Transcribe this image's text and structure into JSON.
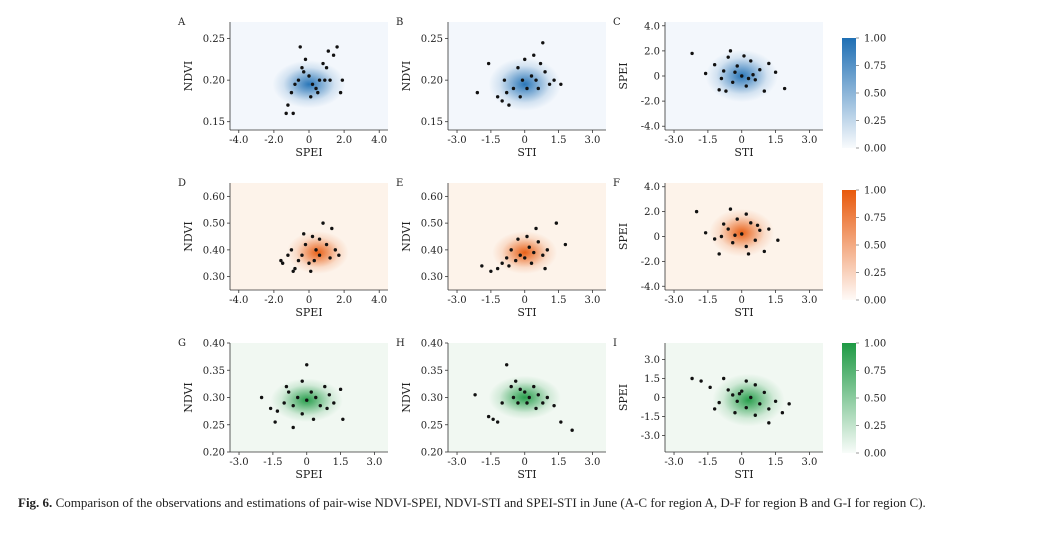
{
  "caption": {
    "label": "Fig. 6.",
    "text": "Comparison of the observations and estimations of pair-wise NDVI-SPEI, NDVI-STI and SPEI-STI in June (A-C for region A, D-F for region B and G-I for region C)."
  },
  "colors": {
    "blue": "#1f6fb4",
    "orange": "#e8590c",
    "green": "#1e9a44",
    "point": "#111111"
  },
  "chart_data": [
    {
      "type": "scatter",
      "panel": "A",
      "region": "A",
      "xlabel": "SPEI",
      "ylabel": "NDVI",
      "xlim": [
        -4.5,
        4.5
      ],
      "ylim": [
        0.14,
        0.27
      ],
      "xticks": [
        -4,
        -2,
        0,
        2,
        4
      ],
      "xtick_labels": [
        "-4.0",
        "-2.0",
        "0",
        "2.0",
        "4.0"
      ],
      "yticks": [
        0.15,
        0.2,
        0.25
      ],
      "ytick_labels": [
        "0.15",
        "0.20",
        "0.25"
      ],
      "density_center": [
        0.0,
        0.195
      ],
      "density_spread": [
        1.3,
        0.018
      ],
      "color": "blue",
      "points": [
        [
          -1.2,
          0.17
        ],
        [
          -1.0,
          0.185
        ],
        [
          -0.8,
          0.195
        ],
        [
          -0.6,
          0.2
        ],
        [
          -0.3,
          0.21
        ],
        [
          0.0,
          0.205
        ],
        [
          0.2,
          0.195
        ],
        [
          0.4,
          0.19
        ],
        [
          0.6,
          0.2
        ],
        [
          0.8,
          0.22
        ],
        [
          1.0,
          0.215
        ],
        [
          1.2,
          0.2
        ],
        [
          1.4,
          0.23
        ],
        [
          1.6,
          0.24
        ],
        [
          1.8,
          0.185
        ],
        [
          1.9,
          0.2
        ],
        [
          -0.5,
          0.24
        ],
        [
          -0.2,
          0.225
        ],
        [
          0.1,
          0.18
        ],
        [
          -1.3,
          0.16
        ],
        [
          -0.9,
          0.16
        ],
        [
          0.5,
          0.185
        ],
        [
          0.9,
          0.2
        ],
        [
          1.1,
          0.235
        ],
        [
          -0.4,
          0.215
        ]
      ]
    },
    {
      "type": "scatter",
      "panel": "B",
      "region": "A",
      "xlabel": "STI",
      "ylabel": "NDVI",
      "xlim": [
        -3.4,
        3.6
      ],
      "ylim": [
        0.14,
        0.27
      ],
      "xticks": [
        -3,
        -1.5,
        0,
        1.5,
        3
      ],
      "xtick_labels": [
        "-3.0",
        "-1.5",
        "0",
        "1.5",
        "3.0"
      ],
      "yticks": [
        0.15,
        0.2,
        0.25
      ],
      "ytick_labels": [
        "0.15",
        "0.20",
        "0.25"
      ],
      "density_center": [
        0.0,
        0.195
      ],
      "density_spread": [
        1.0,
        0.02
      ],
      "color": "blue",
      "points": [
        [
          -2.1,
          0.185
        ],
        [
          -1.6,
          0.22
        ],
        [
          -1.2,
          0.18
        ],
        [
          -0.9,
          0.2
        ],
        [
          -0.7,
          0.17
        ],
        [
          -0.5,
          0.19
        ],
        [
          -0.3,
          0.215
        ],
        [
          -0.1,
          0.2
        ],
        [
          0.1,
          0.19
        ],
        [
          0.3,
          0.205
        ],
        [
          0.5,
          0.2
        ],
        [
          0.7,
          0.22
        ],
        [
          0.9,
          0.21
        ],
        [
          1.1,
          0.195
        ],
        [
          1.3,
          0.2
        ],
        [
          -0.8,
          0.185
        ],
        [
          0.0,
          0.225
        ],
        [
          0.4,
          0.23
        ],
        [
          0.8,
          0.245
        ],
        [
          -1.0,
          0.175
        ],
        [
          1.6,
          0.195
        ],
        [
          -0.2,
          0.18
        ],
        [
          0.6,
          0.19
        ]
      ]
    },
    {
      "type": "scatter",
      "panel": "C",
      "region": "A",
      "xlabel": "STI",
      "ylabel": "SPEI",
      "xlim": [
        -3.4,
        3.6
      ],
      "ylim": [
        -4.3,
        4.3
      ],
      "xticks": [
        -3,
        -1.5,
        0,
        1.5,
        3
      ],
      "xtick_labels": [
        "-3.0",
        "-1.5",
        "0",
        "1.5",
        "3.0"
      ],
      "yticks": [
        -4,
        -2,
        0,
        2,
        4
      ],
      "ytick_labels": [
        "-4.0",
        "-2.0",
        "0",
        "2.0",
        "4.0"
      ],
      "density_center": [
        0.0,
        0.0
      ],
      "density_spread": [
        1.0,
        1.3
      ],
      "color": "blue",
      "points": [
        [
          -2.2,
          1.8
        ],
        [
          -1.6,
          0.2
        ],
        [
          -1.2,
          0.9
        ],
        [
          -1.0,
          -1.1
        ],
        [
          -0.8,
          0.4
        ],
        [
          -0.6,
          1.5
        ],
        [
          -0.4,
          -0.5
        ],
        [
          -0.2,
          0.8
        ],
        [
          0.0,
          0.0
        ],
        [
          0.2,
          -0.8
        ],
        [
          0.4,
          1.2
        ],
        [
          0.6,
          -0.3
        ],
        [
          0.8,
          0.5
        ],
        [
          1.0,
          -1.2
        ],
        [
          1.2,
          1.0
        ],
        [
          -0.5,
          2.0
        ],
        [
          0.1,
          1.6
        ],
        [
          -0.9,
          -0.2
        ],
        [
          1.5,
          0.3
        ],
        [
          1.9,
          -1.0
        ],
        [
          0.3,
          -0.2
        ],
        [
          -0.3,
          0.3
        ],
        [
          0.5,
          0.1
        ],
        [
          -0.7,
          -1.2
        ]
      ]
    },
    {
      "type": "scatter",
      "panel": "D",
      "region": "B",
      "xlabel": "SPEI",
      "ylabel": "NDVI",
      "xlim": [
        -4.5,
        4.5
      ],
      "ylim": [
        0.25,
        0.65
      ],
      "xticks": [
        -4,
        -2,
        0,
        2,
        4
      ],
      "xtick_labels": [
        "-4.0",
        "-2.0",
        "0",
        "2.0",
        "4.0"
      ],
      "yticks": [
        0.3,
        0.4,
        0.5,
        0.6
      ],
      "ytick_labels": [
        "0.30",
        "0.40",
        "0.50",
        "0.60"
      ],
      "density_center": [
        0.5,
        0.39
      ],
      "density_spread": [
        1.1,
        0.05
      ],
      "color": "orange",
      "points": [
        [
          -1.6,
          0.36
        ],
        [
          -1.5,
          0.35
        ],
        [
          -1.2,
          0.38
        ],
        [
          -1.0,
          0.4
        ],
        [
          -0.8,
          0.33
        ],
        [
          -0.6,
          0.36
        ],
        [
          -0.4,
          0.38
        ],
        [
          -0.2,
          0.42
        ],
        [
          0.0,
          0.35
        ],
        [
          0.2,
          0.45
        ],
        [
          0.4,
          0.4
        ],
        [
          0.6,
          0.38
        ],
        [
          0.8,
          0.5
        ],
        [
          1.0,
          0.42
        ],
        [
          1.2,
          0.37
        ],
        [
          1.5,
          0.4
        ],
        [
          -0.3,
          0.46
        ],
        [
          0.1,
          0.32
        ],
        [
          0.6,
          0.44
        ],
        [
          1.3,
          0.48
        ],
        [
          -0.9,
          0.32
        ],
        [
          0.3,
          0.36
        ],
        [
          1.7,
          0.38
        ]
      ]
    },
    {
      "type": "scatter",
      "panel": "E",
      "region": "B",
      "xlabel": "STI",
      "ylabel": "NDVI",
      "xlim": [
        -3.4,
        3.6
      ],
      "ylim": [
        0.25,
        0.65
      ],
      "xticks": [
        -3,
        -1.5,
        0,
        1.5,
        3
      ],
      "xtick_labels": [
        "-3.0",
        "-1.5",
        "0",
        "1.5",
        "3.0"
      ],
      "yticks": [
        0.3,
        0.4,
        0.5,
        0.6
      ],
      "ytick_labels": [
        "0.30",
        "0.40",
        "0.50",
        "0.60"
      ],
      "density_center": [
        0.0,
        0.39
      ],
      "density_spread": [
        0.9,
        0.05
      ],
      "color": "orange",
      "points": [
        [
          -1.9,
          0.34
        ],
        [
          -1.5,
          0.32
        ],
        [
          -1.2,
          0.33
        ],
        [
          -1.0,
          0.35
        ],
        [
          -0.8,
          0.37
        ],
        [
          -0.6,
          0.4
        ],
        [
          -0.4,
          0.36
        ],
        [
          -0.2,
          0.38
        ],
        [
          0.0,
          0.37
        ],
        [
          0.2,
          0.41
        ],
        [
          0.4,
          0.39
        ],
        [
          0.6,
          0.43
        ],
        [
          0.8,
          0.38
        ],
        [
          1.0,
          0.4
        ],
        [
          1.4,
          0.5
        ],
        [
          -0.3,
          0.44
        ],
        [
          0.5,
          0.48
        ],
        [
          1.8,
          0.42
        ],
        [
          -0.7,
          0.34
        ],
        [
          0.3,
          0.35
        ],
        [
          0.1,
          0.45
        ],
        [
          0.9,
          0.33
        ]
      ]
    },
    {
      "type": "scatter",
      "panel": "F",
      "region": "B",
      "xlabel": "STI",
      "ylabel": "SPEI",
      "xlim": [
        -3.4,
        3.6
      ],
      "ylim": [
        -4.3,
        4.3
      ],
      "xticks": [
        -3,
        -1.5,
        0,
        1.5,
        3
      ],
      "xtick_labels": [
        "-3.0",
        "-1.5",
        "0",
        "1.5",
        "3.0"
      ],
      "yticks": [
        -4,
        -2,
        0,
        2,
        4
      ],
      "ytick_labels": [
        "-4.0",
        "-2.0",
        "0",
        "2.0",
        "4.0"
      ],
      "density_center": [
        0.0,
        0.3
      ],
      "density_spread": [
        0.9,
        1.2
      ],
      "color": "orange",
      "points": [
        [
          -2.0,
          2.0
        ],
        [
          -1.6,
          0.3
        ],
        [
          -1.2,
          -0.2
        ],
        [
          -1.0,
          -1.4
        ],
        [
          -0.8,
          1.0
        ],
        [
          -0.6,
          0.6
        ],
        [
          -0.4,
          -0.5
        ],
        [
          -0.2,
          1.4
        ],
        [
          0.0,
          0.2
        ],
        [
          0.2,
          -0.8
        ],
        [
          0.4,
          1.1
        ],
        [
          0.6,
          -0.3
        ],
        [
          0.8,
          0.5
        ],
        [
          1.0,
          -1.2
        ],
        [
          1.2,
          0.6
        ],
        [
          -0.5,
          2.2
        ],
        [
          0.2,
          1.8
        ],
        [
          -0.9,
          0.0
        ],
        [
          1.6,
          -0.3
        ],
        [
          0.3,
          -1.4
        ],
        [
          -0.3,
          0.1
        ],
        [
          0.7,
          0.9
        ]
      ]
    },
    {
      "type": "scatter",
      "panel": "G",
      "region": "C",
      "xlabel": "SPEI",
      "ylabel": "NDVI",
      "xlim": [
        -3.4,
        3.6
      ],
      "ylim": [
        0.2,
        0.4
      ],
      "xticks": [
        -3,
        -1.5,
        0,
        1.5,
        3
      ],
      "xtick_labels": [
        "-3.0",
        "-1.5",
        "0",
        "1.5",
        "3.0"
      ],
      "yticks": [
        0.2,
        0.25,
        0.3,
        0.35,
        0.4
      ],
      "ytick_labels": [
        "0.20",
        "0.25",
        "0.30",
        "0.35",
        "0.40"
      ],
      "density_center": [
        0.0,
        0.295
      ],
      "density_spread": [
        1.0,
        0.025
      ],
      "color": "green",
      "points": [
        [
          -2.0,
          0.3
        ],
        [
          -1.6,
          0.28
        ],
        [
          -1.3,
          0.275
        ],
        [
          -1.0,
          0.29
        ],
        [
          -0.8,
          0.31
        ],
        [
          -0.6,
          0.285
        ],
        [
          -0.4,
          0.3
        ],
        [
          -0.2,
          0.27
        ],
        [
          0.0,
          0.295
        ],
        [
          0.2,
          0.31
        ],
        [
          0.4,
          0.3
        ],
        [
          0.6,
          0.285
        ],
        [
          0.8,
          0.32
        ],
        [
          1.0,
          0.305
        ],
        [
          1.2,
          0.29
        ],
        [
          1.5,
          0.315
        ],
        [
          -0.2,
          0.33
        ],
        [
          0.0,
          0.36
        ],
        [
          -1.4,
          0.255
        ],
        [
          -0.6,
          0.245
        ],
        [
          1.6,
          0.26
        ],
        [
          0.3,
          0.26
        ],
        [
          -0.9,
          0.32
        ],
        [
          0.9,
          0.28
        ]
      ]
    },
    {
      "type": "scatter",
      "panel": "H",
      "region": "C",
      "xlabel": "STI",
      "ylabel": "NDVI",
      "xlim": [
        -3.4,
        3.6
      ],
      "ylim": [
        0.2,
        0.4
      ],
      "xticks": [
        -3,
        -1.5,
        0,
        1.5,
        3
      ],
      "xtick_labels": [
        "-3.0",
        "-1.5",
        "0",
        "1.5",
        "3.0"
      ],
      "yticks": [
        0.2,
        0.25,
        0.3,
        0.35,
        0.4
      ],
      "ytick_labels": [
        "0.20",
        "0.25",
        "0.30",
        "0.35",
        "0.40"
      ],
      "density_center": [
        0.0,
        0.3
      ],
      "density_spread": [
        1.0,
        0.025
      ],
      "color": "green",
      "points": [
        [
          -2.2,
          0.305
        ],
        [
          -1.6,
          0.265
        ],
        [
          -1.4,
          0.26
        ],
        [
          -1.2,
          0.255
        ],
        [
          -1.0,
          0.29
        ],
        [
          -0.8,
          0.36
        ],
        [
          -0.6,
          0.32
        ],
        [
          -0.4,
          0.33
        ],
        [
          -0.2,
          0.315
        ],
        [
          0.0,
          0.31
        ],
        [
          0.2,
          0.3
        ],
        [
          0.4,
          0.32
        ],
        [
          0.6,
          0.305
        ],
        [
          0.8,
          0.29
        ],
        [
          1.0,
          0.3
        ],
        [
          1.3,
          0.285
        ],
        [
          -0.5,
          0.3
        ],
        [
          0.1,
          0.29
        ],
        [
          0.5,
          0.28
        ],
        [
          1.6,
          0.255
        ],
        [
          2.1,
          0.24
        ],
        [
          -0.3,
          0.29
        ]
      ]
    },
    {
      "type": "scatter",
      "panel": "I",
      "region": "C",
      "xlabel": "STI",
      "ylabel": "SPEI",
      "xlim": [
        -3.4,
        3.6
      ],
      "ylim": [
        -4.3,
        4.3
      ],
      "xticks": [
        -3,
        -1.5,
        0,
        1.5,
        3
      ],
      "xtick_labels": [
        "-3.0",
        "-1.5",
        "0",
        "1.5",
        "3.0"
      ],
      "yticks": [
        -3,
        -1.5,
        0,
        1.5,
        3
      ],
      "ytick_labels": [
        "-3.0",
        "-1.5",
        "0",
        "1.5",
        "3.0"
      ],
      "density_center": [
        0.3,
        -0.2
      ],
      "density_spread": [
        1.0,
        1.3
      ],
      "color": "green",
      "points": [
        [
          -2.2,
          1.5
        ],
        [
          -1.8,
          1.3
        ],
        [
          -1.4,
          0.8
        ],
        [
          -1.0,
          -0.4
        ],
        [
          -0.8,
          1.5
        ],
        [
          -0.6,
          0.6
        ],
        [
          -0.4,
          0.2
        ],
        [
          -0.2,
          -0.3
        ],
        [
          0.0,
          0.5
        ],
        [
          0.2,
          -0.8
        ],
        [
          0.4,
          0.0
        ],
        [
          0.6,
          1.0
        ],
        [
          0.8,
          -0.5
        ],
        [
          1.0,
          0.4
        ],
        [
          1.2,
          -0.9
        ],
        [
          1.5,
          -0.3
        ],
        [
          1.8,
          -1.2
        ],
        [
          2.1,
          -0.5
        ],
        [
          -1.2,
          -0.9
        ],
        [
          0.2,
          1.3
        ],
        [
          -0.3,
          -1.2
        ],
        [
          0.6,
          -1.4
        ],
        [
          1.2,
          -2.0
        ],
        [
          -0.1,
          0.3
        ]
      ]
    }
  ],
  "colorbars": [
    {
      "color": "blue",
      "ticks": [
        "1.00",
        "0.75",
        "0.50",
        "0.25",
        "0.00"
      ]
    },
    {
      "color": "orange",
      "ticks": [
        "1.00",
        "0.75",
        "0.50",
        "0.25",
        "0.00"
      ]
    },
    {
      "color": "green",
      "ticks": [
        "1.00",
        "0.75",
        "0.50",
        "0.25",
        "0.00"
      ]
    }
  ]
}
